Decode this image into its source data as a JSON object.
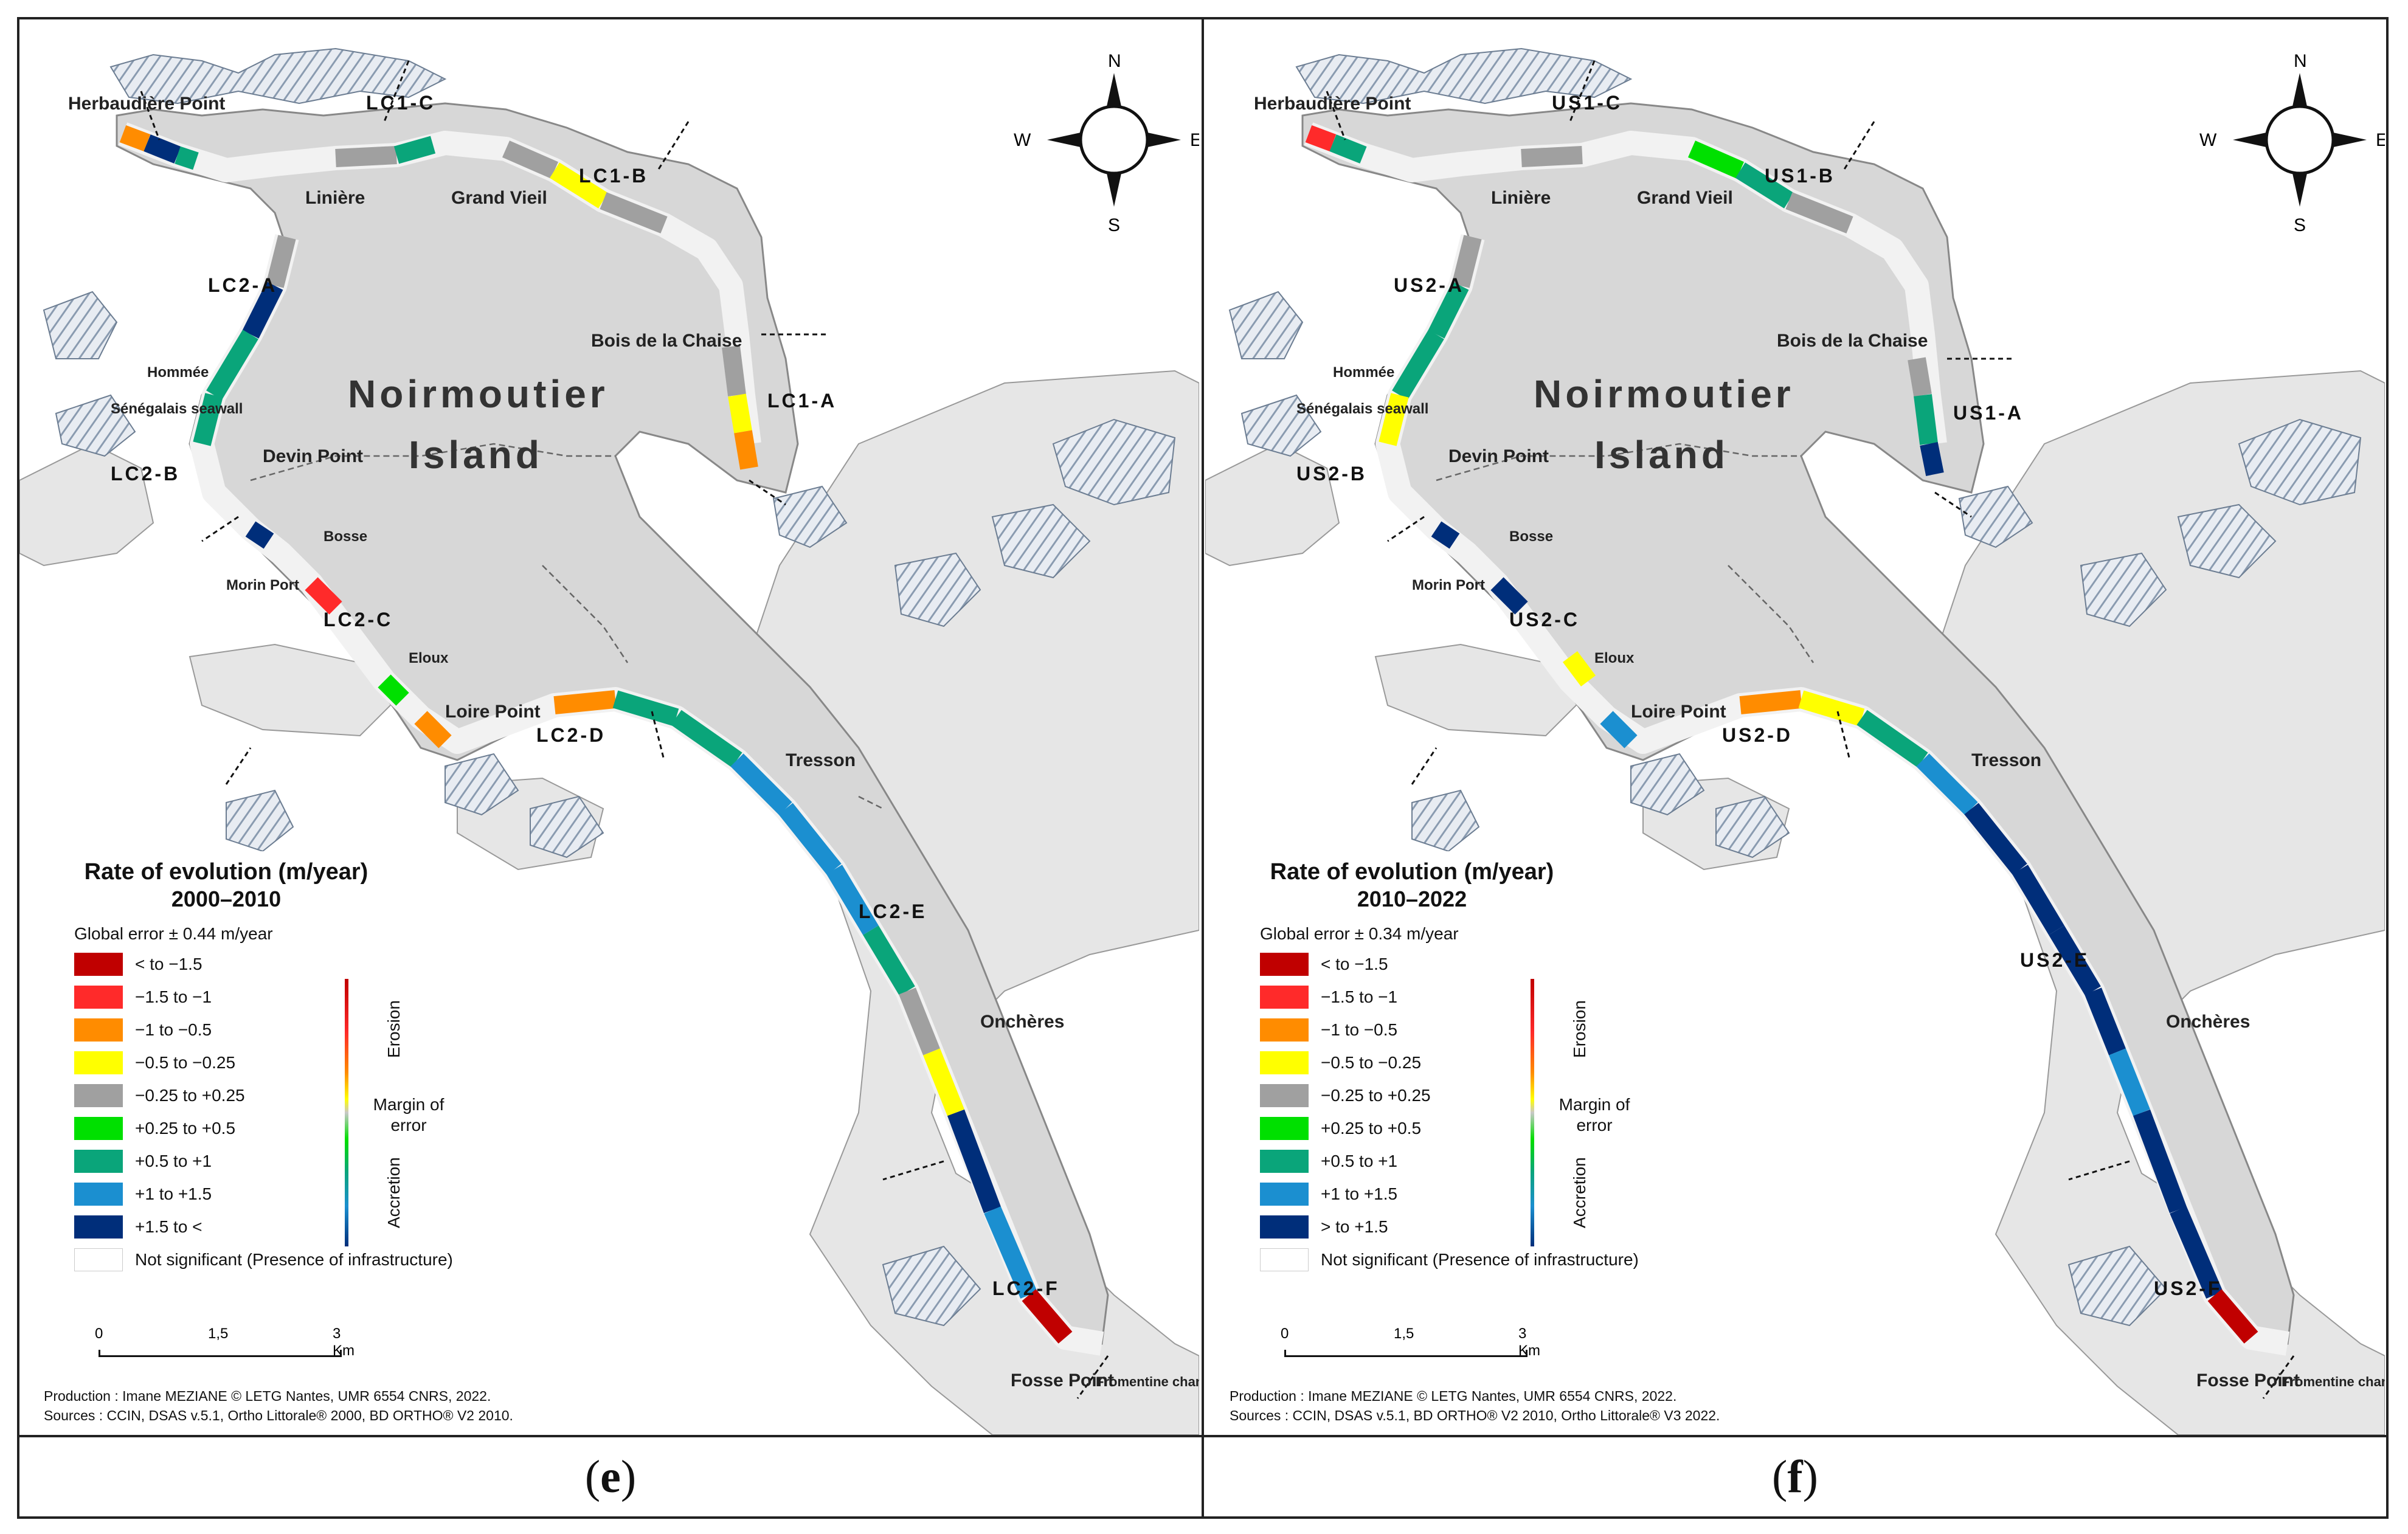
{
  "panels": [
    {
      "id": "e",
      "caption": "e",
      "island": [
        "Noirmoutier",
        "Island"
      ],
      "places": [
        "Herbaudière Point",
        "Linière",
        "Grand Vieil",
        "Bois de la Chaise",
        "Hommée",
        "Sénégalais seawall",
        "Devin Point",
        "Bosse",
        "Morin Port",
        "Eloux",
        "Loire Point",
        "Tresson",
        "Onchères",
        "Fosse Point",
        "Fromentine channel"
      ],
      "segments": [
        "LC1-C",
        "LC1-B",
        "LC1-A",
        "LC2-A",
        "LC2-B",
        "LC2-C",
        "LC2-D",
        "LC2-E",
        "LC2-F"
      ],
      "legend": {
        "title": "Rate of evolution (m/year)",
        "period": "2000–2010",
        "error": "Global error ± 0.44 m/year",
        "classes": [
          {
            "label": "< to −1.5",
            "color": "#c00000"
          },
          {
            "label": "−1.5 to −1",
            "color": "#ff2a2a"
          },
          {
            "label": "−1 to −0.5",
            "color": "#ff8c00"
          },
          {
            "label": "−0.5 to −0.25",
            "color": "#ffff00"
          },
          {
            "label": "−0.25 to +0.25",
            "color": "#a0a0a0"
          },
          {
            "label": "+0.25 to +0.5",
            "color": "#00e000"
          },
          {
            "label": "+0.5 to +1",
            "color": "#0aa57a"
          },
          {
            "label": "+1 to +1.5",
            "color": "#1b8fd0"
          },
          {
            "label": "+1.5 to <",
            "color": "#002e7a"
          },
          {
            "label": "Not significant (Presence of infrastructure)",
            "color": "#ffffff"
          }
        ],
        "erosion": "Erosion",
        "margin": "Margin of error",
        "accretion": "Accretion"
      },
      "scale": [
        "0",
        "1,5",
        "3 Km"
      ],
      "credits": [
        "Production : Imane MEZIANE © LETG Nantes, UMR 6554 CNRS, 2022.",
        "Sources :  CCIN, DSAS v.5.1, Ortho Littorale® 2000, BD ORTHO® V2 2010."
      ],
      "compass": [
        "N",
        "S",
        "W",
        "E"
      ]
    },
    {
      "id": "f",
      "caption": "f",
      "island": [
        "Noirmoutier",
        "Island"
      ],
      "places": [
        "Herbaudière Point",
        "Linière",
        "Grand Vieil",
        "Bois de la Chaise",
        "Hommée",
        "Sénégalais seawall",
        "Devin Point",
        "Bosse",
        "Morin Port",
        "Eloux",
        "Loire Point",
        "Tresson",
        "Onchères",
        "Fosse Point",
        "Fromentine channel"
      ],
      "segments": [
        "US1-C",
        "US1-B",
        "US1-A",
        "US2-A",
        "US2-B",
        "US2-C",
        "US2-D",
        "US2-E",
        "US2-F"
      ],
      "legend": {
        "title": "Rate of evolution (m/year)",
        "period": "2010–2022",
        "error": "Global error ± 0.34 m/year",
        "classes": [
          {
            "label": "< to −1.5",
            "color": "#c00000"
          },
          {
            "label": "−1.5 to −1",
            "color": "#ff2a2a"
          },
          {
            "label": "−1 to −0.5",
            "color": "#ff8c00"
          },
          {
            "label": "−0.5 to −0.25",
            "color": "#ffff00"
          },
          {
            "label": "−0.25 to +0.25",
            "color": "#a0a0a0"
          },
          {
            "label": "+0.25 to +0.5",
            "color": "#00e000"
          },
          {
            "label": "+0.5 to +1",
            "color": "#0aa57a"
          },
          {
            "label": "+1 to +1.5",
            "color": "#1b8fd0"
          },
          {
            "label": "> to +1.5",
            "color": "#002e7a"
          },
          {
            "label": "Not significant (Presence of infrastructure)",
            "color": "#ffffff"
          }
        ],
        "erosion": "Erosion",
        "margin": "Margin of error",
        "accretion": "Accretion"
      },
      "scale": [
        "0",
        "1,5",
        "3 Km"
      ],
      "credits": [
        "Production : Imane MEZIANE © LETG Nantes, UMR 6554 CNRS, 2022.",
        "Sources :  CCIN, DSAS v.5.1, BD ORTHO® V2 2010,  Ortho Littorale® V3 2022."
      ],
      "compass": [
        "N",
        "S",
        "W",
        "E"
      ]
    }
  ]
}
